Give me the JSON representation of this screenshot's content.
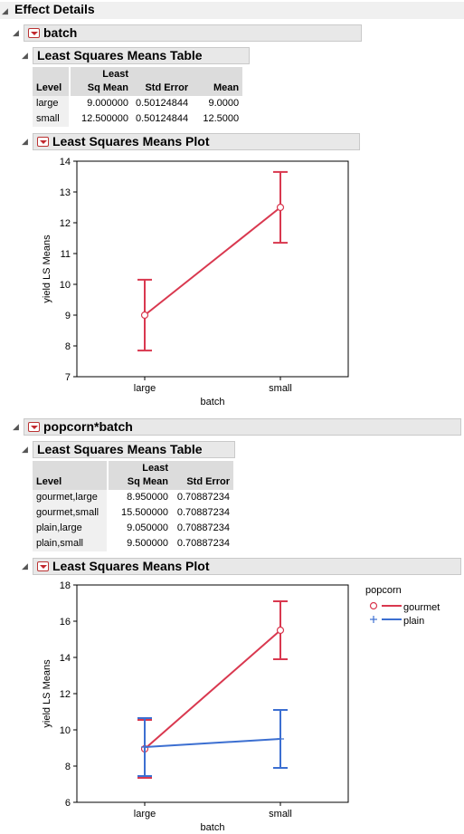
{
  "report": {
    "title": "Effect Details"
  },
  "batch_section": {
    "title": "batch",
    "table_title": "Least Squares Means Table",
    "columns": {
      "level": "Level",
      "lsm_line1": "Least",
      "lsm_line2": "Sq Mean",
      "stderr": "Std Error",
      "mean": "Mean"
    },
    "rows": [
      {
        "level": "large",
        "lsm": "9.000000",
        "stderr": "0.50124844",
        "mean": "9.0000"
      },
      {
        "level": "small",
        "lsm": "12.500000",
        "stderr": "0.50124844",
        "mean": "12.5000"
      }
    ],
    "plot_title": "Least Squares Means Plot"
  },
  "interaction_section": {
    "title": "popcorn*batch",
    "table_title": "Least Squares Means Table",
    "columns": {
      "level": "Level",
      "lsm_line1": "Least",
      "lsm_line2": "Sq Mean",
      "stderr": "Std Error"
    },
    "rows": [
      {
        "level": "gourmet,large",
        "lsm": "8.950000",
        "stderr": "0.70887234"
      },
      {
        "level": "gourmet,small",
        "lsm": "15.500000",
        "stderr": "0.70887234"
      },
      {
        "level": "plain,large",
        "lsm": "9.050000",
        "stderr": "0.70887234"
      },
      {
        "level": "plain,small",
        "lsm": "9.500000",
        "stderr": "0.70887234"
      }
    ],
    "plot_title": "Least Squares Means Plot",
    "legend": {
      "title": "popcorn",
      "items": [
        {
          "label": "gourmet"
        },
        {
          "label": "plain"
        }
      ]
    }
  },
  "colors": {
    "gourmet": "#d9384f",
    "plain": "#3c6fd1"
  },
  "chart_data": [
    {
      "type": "line",
      "title": "",
      "xlabel": "batch",
      "ylabel": "yield LS Means",
      "categories": [
        "large",
        "small"
      ],
      "ylim": [
        7,
        14
      ],
      "yticks": [
        7,
        8,
        9,
        10,
        11,
        12,
        13,
        14
      ],
      "series": [
        {
          "values": [
            9.0,
            12.5
          ],
          "lower": [
            7.85,
            11.35
          ],
          "upper": [
            10.15,
            13.65
          ],
          "color": "#d9384f",
          "marker": "circle"
        }
      ]
    },
    {
      "type": "line",
      "title": "",
      "xlabel": "batch",
      "ylabel": "yield LS Means",
      "categories": [
        "large",
        "small"
      ],
      "ylim": [
        6,
        18
      ],
      "yticks": [
        6,
        8,
        10,
        12,
        14,
        16,
        18
      ],
      "legend": "right",
      "series": [
        {
          "name": "gourmet",
          "values": [
            8.95,
            15.5
          ],
          "lower": [
            7.35,
            13.9
          ],
          "upper": [
            10.55,
            17.1
          ],
          "color": "#d9384f",
          "marker": "circle"
        },
        {
          "name": "plain",
          "values": [
            9.05,
            9.5
          ],
          "lower": [
            7.45,
            7.9
          ],
          "upper": [
            10.65,
            11.1
          ],
          "color": "#3c6fd1",
          "marker": "plus"
        }
      ]
    }
  ]
}
